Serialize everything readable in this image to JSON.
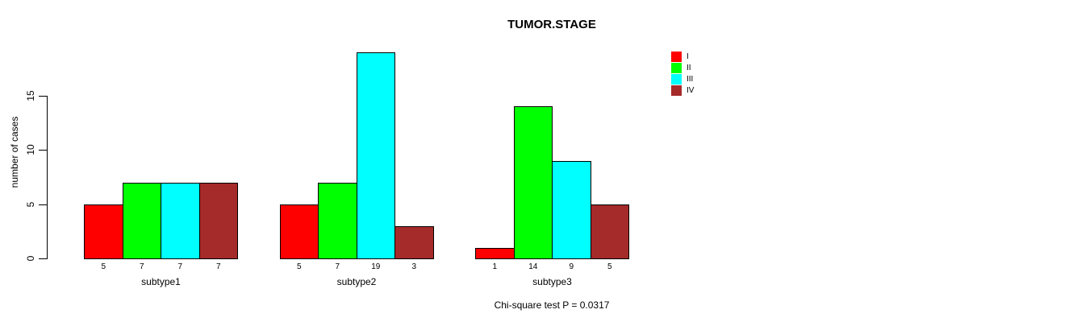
{
  "chart_data": {
    "type": "bar",
    "title": "TUMOR.STAGE",
    "ylabel": "number of cases",
    "xlabel": "",
    "categories": [
      "subtype1",
      "subtype2",
      "subtype3"
    ],
    "series": [
      {
        "name": "I",
        "color": "#FF0000",
        "values": [
          5,
          5,
          1
        ]
      },
      {
        "name": "II",
        "color": "#00FF00",
        "values": [
          7,
          7,
          14
        ]
      },
      {
        "name": "III",
        "color": "#00FFFF",
        "values": [
          7,
          19,
          9
        ]
      },
      {
        "name": "IV",
        "color": "#A52A2A",
        "values": [
          7,
          3,
          5
        ]
      }
    ],
    "yticks": [
      0,
      5,
      10,
      15
    ],
    "ylim": [
      0,
      19
    ],
    "grid": false,
    "legend_position": "top-right",
    "bar_value_labels_shown": true,
    "annotation": "Chi-square test P = 0.0317",
    "bar_border_color": "#000000",
    "background_color": "#ffffff"
  }
}
